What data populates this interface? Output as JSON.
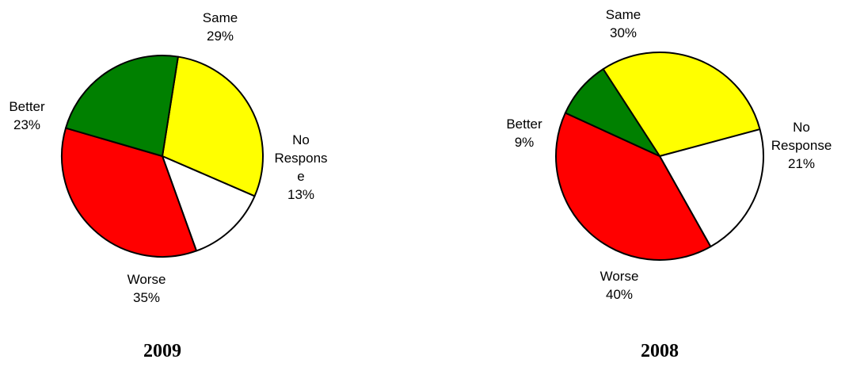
{
  "chart_data": [
    {
      "type": "pie",
      "title": "2009",
      "slices": [
        {
          "label": "Same",
          "value": 29,
          "value_label": "29%",
          "color": "#ffff00"
        },
        {
          "label": "No Response",
          "label_lines": [
            "No",
            "Respons",
            "e"
          ],
          "value": 13,
          "value_label": "13%",
          "color": "#ffffff"
        },
        {
          "label": "Worse",
          "value": 35,
          "value_label": "35%",
          "color": "#ff0000"
        },
        {
          "label": "Better",
          "value": 23,
          "value_label": "23%",
          "color": "#008000"
        }
      ]
    },
    {
      "type": "pie",
      "title": "2008",
      "slices": [
        {
          "label": "Same",
          "value": 30,
          "value_label": "30%",
          "color": "#ffff00"
        },
        {
          "label": "No Response",
          "label_lines": [
            "No",
            "Response"
          ],
          "value": 21,
          "value_label": "21%",
          "color": "#ffffff"
        },
        {
          "label": "Worse",
          "value": 40,
          "value_label": "40%",
          "color": "#ff0000"
        },
        {
          "label": "Better",
          "value": 9,
          "value_label": "9%",
          "color": "#008000"
        }
      ]
    }
  ]
}
